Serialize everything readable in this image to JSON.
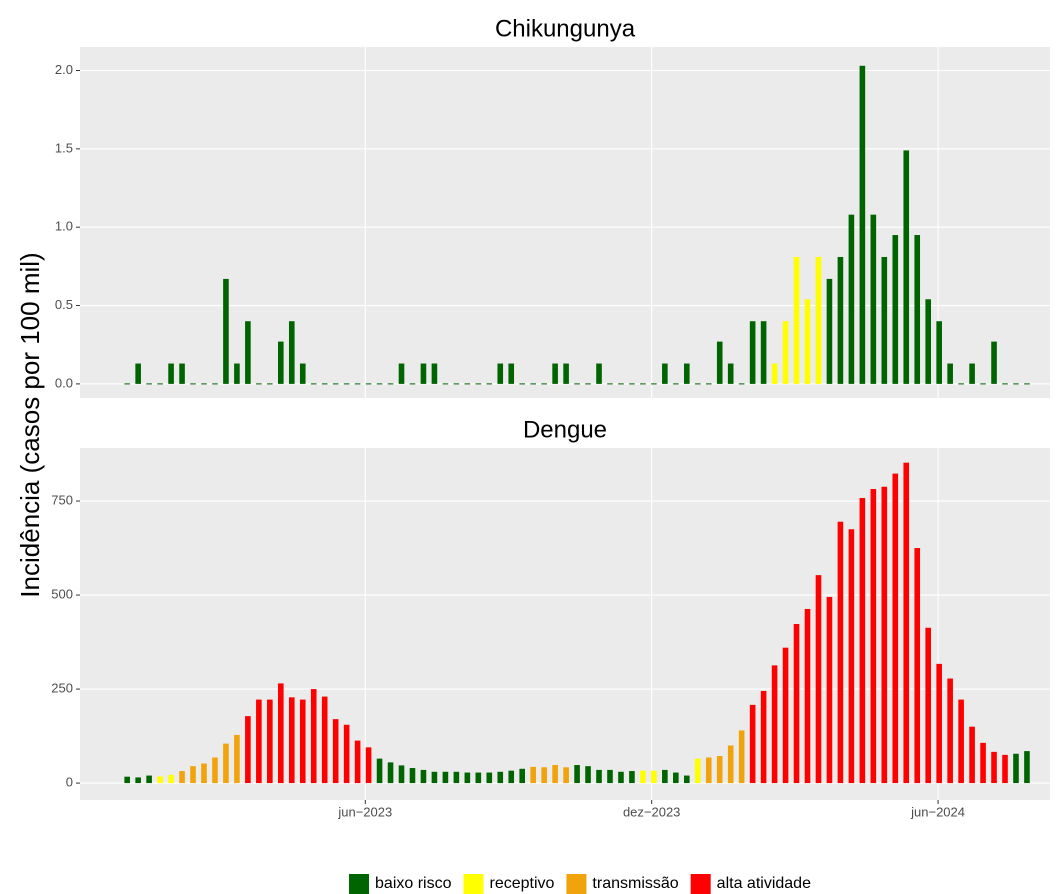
{
  "chart_data": [
    {
      "type": "bar",
      "title": "Chikungunya",
      "values": [
        0,
        0.13,
        0,
        0,
        0.13,
        0.13,
        0,
        0,
        0,
        0.67,
        0.13,
        0.4,
        0,
        0,
        0.27,
        0.4,
        0.13,
        0,
        0,
        0,
        0,
        0,
        0,
        0,
        0,
        0.13,
        0,
        0.13,
        0.13,
        0,
        0,
        0,
        0,
        0,
        0.13,
        0.13,
        0,
        0,
        0,
        0.13,
        0.13,
        0,
        0,
        0.13,
        0,
        0,
        0,
        0,
        0,
        0.13,
        0,
        0.13,
        0,
        0,
        0.27,
        0.13,
        0,
        0.4,
        0.4,
        0.13,
        0.4,
        0.81,
        0.54,
        0.81,
        0.67,
        0.81,
        1.08,
        2.03,
        1.08,
        0.81,
        0.95,
        1.49,
        0.95,
        0.54,
        0.4,
        0.13,
        0,
        0.13,
        0,
        0.27,
        0,
        0,
        0
      ],
      "colors": [
        "#006400",
        "#006400",
        "#006400",
        "#006400",
        "#006400",
        "#006400",
        "#006400",
        "#006400",
        "#006400",
        "#006400",
        "#006400",
        "#006400",
        "#006400",
        "#006400",
        "#006400",
        "#006400",
        "#006400",
        "#006400",
        "#006400",
        "#006400",
        "#006400",
        "#006400",
        "#006400",
        "#006400",
        "#006400",
        "#006400",
        "#006400",
        "#006400",
        "#006400",
        "#006400",
        "#006400",
        "#006400",
        "#006400",
        "#006400",
        "#006400",
        "#006400",
        "#006400",
        "#006400",
        "#006400",
        "#006400",
        "#006400",
        "#006400",
        "#006400",
        "#006400",
        "#006400",
        "#006400",
        "#006400",
        "#006400",
        "#006400",
        "#006400",
        "#006400",
        "#006400",
        "#006400",
        "#006400",
        "#006400",
        "#006400",
        "#006400",
        "#006400",
        "#006400",
        "#FFFF00",
        "#FFFF00",
        "#FFFF00",
        "#FFFF00",
        "#FFFF00",
        "#006400",
        "#006400",
        "#006400",
        "#006400",
        "#006400",
        "#006400",
        "#006400",
        "#006400",
        "#006400",
        "#006400",
        "#006400",
        "#006400",
        "#006400",
        "#006400",
        "#006400",
        "#006400",
        "#006400",
        "#006400",
        "#006400"
      ],
      "xlim": [
        -4.3,
        84.1
      ],
      "ylim": [
        -0.09,
        2.15
      ],
      "yticks": [
        {
          "value": 0,
          "label": "0.0"
        },
        0.5,
        {
          "value": 1,
          "label": "1.0"
        },
        1.5,
        {
          "value": 2,
          "label": "2.0"
        }
      ],
      "grid": true
    },
    {
      "type": "bar",
      "title": "Dengue",
      "values": [
        17,
        15,
        20,
        18,
        22,
        32,
        45,
        52,
        68,
        105,
        128,
        178,
        222,
        222,
        265,
        228,
        222,
        250,
        230,
        170,
        155,
        113,
        95,
        65,
        55,
        47,
        40,
        35,
        30,
        30,
        30,
        28,
        28,
        28,
        30,
        33,
        38,
        43,
        42,
        48,
        42,
        48,
        45,
        35,
        35,
        30,
        32,
        33,
        33,
        35,
        28,
        20,
        65,
        68,
        72,
        100,
        140,
        208,
        245,
        313,
        360,
        423,
        463,
        553,
        495,
        695,
        675,
        758,
        782,
        788,
        823,
        852,
        625,
        413,
        317,
        278,
        222,
        150,
        107,
        83,
        75,
        78,
        85
      ],
      "colors": [
        "#006400",
        "#006400",
        "#006400",
        "#FFFF00",
        "#FFFF00",
        "#F0A30A",
        "#F0A30A",
        "#F0A30A",
        "#F0A30A",
        "#F0A30A",
        "#F0A30A",
        "#FF0000",
        "#FF0000",
        "#FF0000",
        "#FF0000",
        "#FF0000",
        "#FF0000",
        "#FF0000",
        "#FF0000",
        "#FF0000",
        "#FF0000",
        "#FF0000",
        "#FF0000",
        "#006400",
        "#006400",
        "#006400",
        "#006400",
        "#006400",
        "#006400",
        "#006400",
        "#006400",
        "#006400",
        "#006400",
        "#006400",
        "#006400",
        "#006400",
        "#006400",
        "#F0A30A",
        "#F0A30A",
        "#F0A30A",
        "#F0A30A",
        "#006400",
        "#006400",
        "#006400",
        "#006400",
        "#006400",
        "#006400",
        "#FFFF00",
        "#FFFF00",
        "#006400",
        "#006400",
        "#006400",
        "#FFFF00",
        "#F0A30A",
        "#F0A30A",
        "#F0A30A",
        "#F0A30A",
        "#FF0000",
        "#FF0000",
        "#FF0000",
        "#FF0000",
        "#FF0000",
        "#FF0000",
        "#FF0000",
        "#FF0000",
        "#FF0000",
        "#FF0000",
        "#FF0000",
        "#FF0000",
        "#FF0000",
        "#FF0000",
        "#FF0000",
        "#FF0000",
        "#FF0000",
        "#FF0000",
        "#FF0000",
        "#FF0000",
        "#FF0000",
        "#FF0000",
        "#FF0000",
        "#FF0000",
        "#006400",
        "#006400",
        "#006400"
      ],
      "xlim": [
        -4.3,
        84.1
      ],
      "ylim": [
        -45,
        891
      ],
      "yticks": [
        0,
        250,
        500,
        750
      ],
      "xticks": [
        {
          "value": 21.7,
          "label": "jun−2023"
        },
        {
          "value": 47.8,
          "label": "dez−2023"
        },
        {
          "value": 73.9,
          "label": "jun−2024"
        }
      ],
      "grid": true
    }
  ],
  "ylabel": "Incidência (casos por 100 mil)",
  "legend": {
    "position": "bottom",
    "items": [
      {
        "name": "baixo risco",
        "color": "#006400"
      },
      {
        "name": "receptivo",
        "color": "#FFFF00"
      },
      {
        "name": "transmissão",
        "color": "#F0A30A"
      },
      {
        "name": "alta atividade",
        "color": "#FF0000"
      }
    ]
  }
}
